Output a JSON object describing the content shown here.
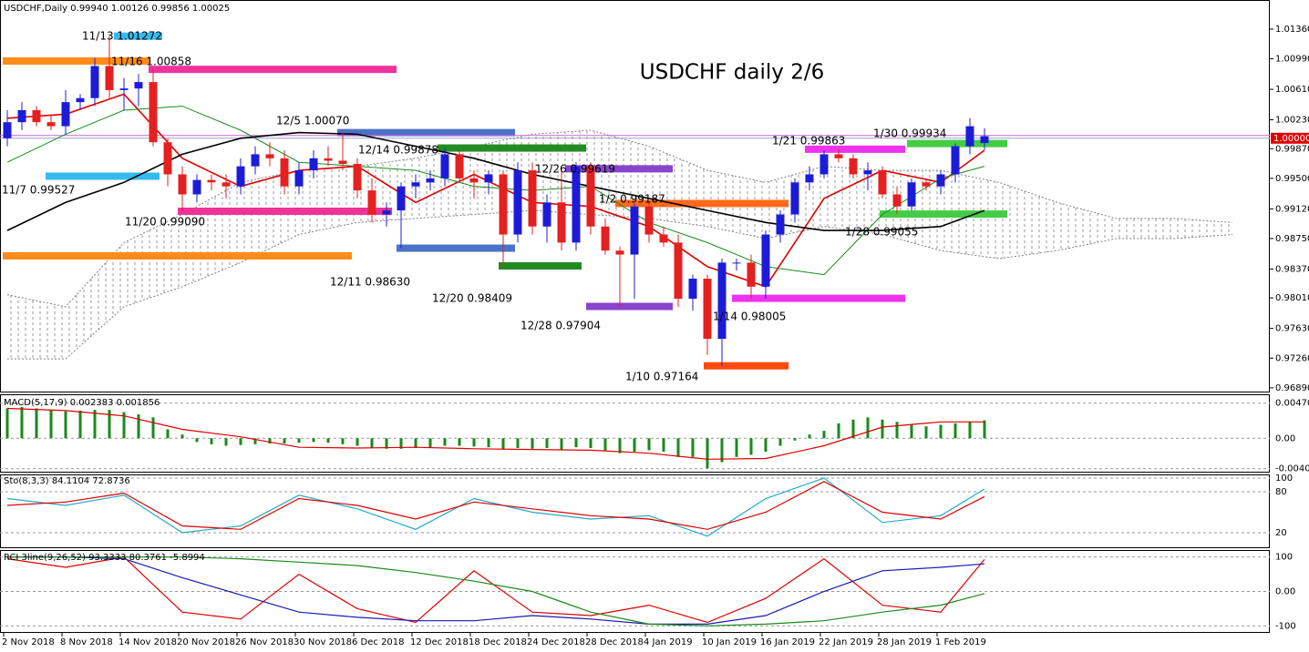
{
  "chart_data": {
    "type": "candlestick",
    "header": "USDCHF,Daily  0.99940 1.00126 0.99856 1.00025",
    "title": "USDCHF daily 2/6",
    "up_color": "#1c1cd8",
    "down_color": "#e42020",
    "ylim": [
      0.96843,
      1.017
    ],
    "yticks": [
      {
        "value": 1.0136,
        "label": "1.01360"
      },
      {
        "value": 1.0099,
        "label": "1.00990"
      },
      {
        "value": 1.0061,
        "label": "1.00610"
      },
      {
        "value": 1.0023,
        "label": "1.00230"
      },
      {
        "value": 0.9987,
        "label": "0.99870"
      },
      {
        "value": 0.995,
        "label": "0.99500"
      },
      {
        "value": 0.9912,
        "label": "0.99120"
      },
      {
        "value": 0.9875,
        "label": "0.98750"
      },
      {
        "value": 0.9837,
        "label": "0.98370"
      },
      {
        "value": 0.9801,
        "label": "0.98010"
      },
      {
        "value": 0.9763,
        "label": "0.97630"
      },
      {
        "value": 0.9726,
        "label": "0.97260"
      },
      {
        "value": 0.9689,
        "label": "0.96890"
      }
    ],
    "current_price": {
      "value": 1.0,
      "label": "1.00000"
    },
    "categories": [
      "2 Nov 2018",
      null,
      null,
      null,
      "8 Nov 2018",
      null,
      null,
      null,
      "14 Nov 2018",
      null,
      null,
      null,
      "20 Nov 2018",
      null,
      null,
      null,
      "26 Nov 2018",
      null,
      null,
      null,
      "30 Nov 2018",
      null,
      null,
      null,
      "6 Dec 2018",
      null,
      null,
      null,
      "12 Dec 2018",
      null,
      null,
      null,
      "18 Dec 2018",
      null,
      null,
      null,
      "24 Dec 2018",
      null,
      null,
      null,
      "28 Dec 2018",
      null,
      null,
      null,
      "4 Jan 2019",
      null,
      null,
      null,
      "10 Jan 2019",
      null,
      null,
      null,
      "16 Jan 2019",
      null,
      null,
      null,
      "22 Jan 2019",
      null,
      null,
      null,
      "28 Jan 2019",
      null,
      null,
      null,
      "1 Feb 2019",
      null,
      null,
      null
    ],
    "ohlc": [
      [
        1.0,
        1.0035,
        0.999,
        1.002
      ],
      [
        1.002,
        1.0045,
        1.001,
        1.0035
      ],
      [
        1.0035,
        1.004,
        1.0015,
        1.002
      ],
      [
        1.002,
        1.003,
        1.001,
        1.0015
      ],
      [
        1.0015,
        1.006,
        1.0005,
        1.0045
      ],
      [
        1.0045,
        1.0055,
        1.0035,
        1.005
      ],
      [
        1.005,
        1.01,
        1.004,
        1.009
      ],
      [
        1.009,
        1.01272,
        1.005,
        1.006
      ],
      [
        1.006,
        1.0075,
        1.0035,
        1.0062
      ],
      [
        1.0062,
        1.008,
        1.004,
        1.007
      ],
      [
        1.007,
        1.00858,
        0.999,
        0.9995
      ],
      [
        0.9995,
        1.0,
        0.994,
        0.9955
      ],
      [
        0.9955,
        0.9965,
        0.9909,
        0.993
      ],
      [
        0.993,
        0.9955,
        0.992,
        0.9948
      ],
      [
        0.9948,
        0.9955,
        0.9935,
        0.9945
      ],
      [
        0.9945,
        0.9955,
        0.9925,
        0.994
      ],
      [
        0.994,
        0.9975,
        0.993,
        0.9965
      ],
      [
        0.9965,
        0.999,
        0.9955,
        0.998
      ],
      [
        0.998,
        0.9995,
        0.9965,
        0.9975
      ],
      [
        0.9975,
        0.9985,
        0.993,
        0.994
      ],
      [
        0.994,
        0.997,
        0.993,
        0.996
      ],
      [
        0.996,
        0.9985,
        0.995,
        0.9975
      ],
      [
        0.9975,
        0.999,
        0.9965,
        0.9972
      ],
      [
        0.9972,
        1.0007,
        0.996,
        0.9968
      ],
      [
        0.9968,
        0.9975,
        0.9925,
        0.9935
      ],
      [
        0.9935,
        0.995,
        0.9895,
        0.9905
      ],
      [
        0.9905,
        0.992,
        0.989,
        0.991
      ],
      [
        0.991,
        0.9945,
        0.9863,
        0.994
      ],
      [
        0.994,
        0.9955,
        0.9925,
        0.9945
      ],
      [
        0.9945,
        0.996,
        0.9935,
        0.995
      ],
      [
        0.995,
        0.99878,
        0.994,
        0.998
      ],
      [
        0.998,
        0.9985,
        0.9945,
        0.995
      ],
      [
        0.995,
        0.996,
        0.9925,
        0.9945
      ],
      [
        0.9945,
        0.996,
        0.993,
        0.9955
      ],
      [
        0.9955,
        0.996,
        0.98409,
        0.988
      ],
      [
        0.988,
        0.997,
        0.987,
        0.996
      ],
      [
        0.996,
        0.997,
        0.988,
        0.989
      ],
      [
        0.989,
        0.993,
        0.987,
        0.992
      ],
      [
        0.992,
        0.99619,
        0.986,
        0.987
      ],
      [
        0.987,
        0.997,
        0.986,
        0.9965
      ],
      [
        0.9965,
        0.997,
        0.988,
        0.989
      ],
      [
        0.989,
        0.99,
        0.9855,
        0.986
      ],
      [
        0.986,
        0.9865,
        0.97904,
        0.9855
      ],
      [
        0.9855,
        0.99187,
        0.98,
        0.9915
      ],
      [
        0.9915,
        0.992,
        0.987,
        0.988
      ],
      [
        0.988,
        0.989,
        0.9865,
        0.987
      ],
      [
        0.987,
        0.988,
        0.979,
        0.98
      ],
      [
        0.98,
        0.983,
        0.9785,
        0.9825
      ],
      [
        0.9825,
        0.983,
        0.973,
        0.975
      ],
      [
        0.975,
        0.985,
        0.97164,
        0.9845
      ],
      [
        0.9845,
        0.985,
        0.9835,
        0.9845
      ],
      [
        0.9845,
        0.9855,
        0.98005,
        0.9815
      ],
      [
        0.9815,
        0.9885,
        0.98,
        0.988
      ],
      [
        0.988,
        0.991,
        0.987,
        0.9905
      ],
      [
        0.9905,
        0.995,
        0.9895,
        0.9945
      ],
      [
        0.9945,
        0.9965,
        0.9935,
        0.9955
      ],
      [
        0.9955,
        0.9985,
        0.995,
        0.998
      ],
      [
        0.998,
        0.99863,
        0.997,
        0.9975
      ],
      [
        0.9975,
        0.998,
        0.995,
        0.9955
      ],
      [
        0.9955,
        0.997,
        0.9935,
        0.996
      ],
      [
        0.996,
        0.9965,
        0.9925,
        0.993
      ],
      [
        0.993,
        0.994,
        0.99055,
        0.9915
      ],
      [
        0.9915,
        0.995,
        0.991,
        0.9945
      ],
      [
        0.9945,
        0.995,
        0.9935,
        0.994
      ],
      [
        0.994,
        0.996,
        0.993,
        0.9955
      ],
      [
        0.9955,
        0.99934,
        0.9945,
        0.999
      ],
      [
        0.999,
        1.0025,
        0.998,
        1.0015
      ],
      [
        0.9994,
        1.00126,
        0.99856,
        1.00025
      ]
    ],
    "lines": [
      {
        "color": "#e00000",
        "x": [
          0,
          4,
          8,
          12,
          16,
          20,
          24,
          28,
          32,
          36,
          40,
          44,
          48,
          52,
          56,
          60,
          64,
          67
        ],
        "values": [
          1.0025,
          1.003,
          1.0055,
          0.9975,
          0.994,
          0.996,
          0.9965,
          0.992,
          0.9955,
          0.992,
          0.9915,
          0.989,
          0.984,
          0.9815,
          0.9925,
          0.996,
          0.9945,
          0.9985
        ]
      },
      {
        "color": "#1a8a1a",
        "x": [
          0,
          4,
          8,
          12,
          16,
          20,
          24,
          28,
          32,
          36,
          40,
          44,
          48,
          52,
          56,
          60,
          64,
          67
        ],
        "values": [
          0.997,
          1.0005,
          1.0035,
          1.004,
          1.001,
          0.997,
          0.9965,
          0.996,
          0.994,
          0.9935,
          0.994,
          0.9895,
          0.987,
          0.984,
          0.983,
          0.9905,
          0.995,
          0.9965
        ]
      },
      {
        "color": "#000000",
        "x": [
          0,
          4,
          8,
          12,
          16,
          20,
          24,
          28,
          32,
          36,
          40,
          44,
          48,
          52,
          56,
          60,
          64,
          67
        ],
        "values": [
          0.9885,
          0.992,
          0.9945,
          0.998,
          1.0,
          1.0007,
          1.0005,
          0.999,
          0.9975,
          0.9955,
          0.994,
          0.9925,
          0.991,
          0.9895,
          0.9885,
          0.9885,
          0.989,
          0.991
        ]
      }
    ],
    "cloud": {
      "color": "#808080",
      "x": [
        0,
        4,
        8,
        12,
        16,
        20,
        24,
        28,
        32,
        36,
        40,
        44,
        48,
        52,
        56,
        60,
        64,
        68,
        72,
        76,
        80,
        84
      ],
      "upper": [
        0.9805,
        0.979,
        0.987,
        0.9905,
        0.9945,
        0.996,
        0.9965,
        0.9975,
        0.999,
        1.0005,
        1.001,
        0.999,
        0.996,
        0.9945,
        0.9965,
        0.996,
        0.996,
        0.9945,
        0.992,
        0.99,
        0.99,
        0.9895
      ],
      "lower": [
        0.9725,
        0.9725,
        0.979,
        0.9815,
        0.9845,
        0.988,
        0.9895,
        0.99,
        0.9905,
        0.991,
        0.9905,
        0.99,
        0.989,
        0.9875,
        0.989,
        0.988,
        0.986,
        0.985,
        0.986,
        0.9875,
        0.9875,
        0.988
      ]
    },
    "annotations": [
      {
        "label": "11/13 1.01272",
        "value": 1.01272,
        "color": "#33bbee"
      },
      {
        "label": "11/16 1.00858",
        "value": 1.00858,
        "color": "#ee3399"
      },
      {
        "label": "11/7 0.99527",
        "value": 0.99527,
        "color": "#33bbee"
      },
      {
        "label": "11/20 0.99090",
        "value": 0.9909,
        "color": "#ee3399"
      },
      {
        "label": "12/5 1.00070",
        "value": 1.0007,
        "color": "#4a72c8"
      },
      {
        "label": "12/14 0.99878",
        "value": 0.99878,
        "color": "#228b22"
      },
      {
        "label": "12/11 0.98630",
        "value": 0.9863,
        "color": "#4a72c8"
      },
      {
        "label": "12/20 0.98409",
        "value": 0.98409,
        "color": "#228b22"
      },
      {
        "label": "12/26 0.99619",
        "value": 0.99619,
        "color": "#8844cc"
      },
      {
        "label": "1/2 0.99187",
        "value": 0.99187,
        "color": "#ff6a1a"
      },
      {
        "label": "12/28 0.97904",
        "value": 0.97904,
        "color": "#8844cc"
      },
      {
        "label": "1/10 0.97164",
        "value": 0.97164,
        "color": "#ff4a0a"
      },
      {
        "label": "1/14 0.98005",
        "value": 0.98005,
        "color": "#ee33ee"
      },
      {
        "label": "1/21 0.99863",
        "value": 0.99863,
        "color": "#ee33ee"
      },
      {
        "label": "1/30 0.99934",
        "value": 0.99934,
        "color": "#44cc44"
      },
      {
        "label": "1/28 0.99055",
        "value": 0.99055,
        "color": "#44cc44"
      }
    ],
    "panels": [
      {
        "header": "MACD(5,17,9) 0.002383 0.001856",
        "ylim": [
          -0.00447,
          0.00552
        ],
        "yticks": [
          0.004701,
          {
            "value": 0,
            "label": "0.00"
          },
          -0.004069
        ],
        "histogram": {
          "color": "#1a8a1a",
          "values": [
            0.004,
            0.0042,
            0.004,
            0.0038,
            0.0036,
            0.0037,
            0.0038,
            0.0038,
            0.0035,
            0.0032,
            0.0028,
            0.0012,
            0.0005,
            -0.0005,
            -0.0008,
            -0.001,
            -0.0009,
            -0.0008,
            -0.0007,
            -0.0007,
            -0.0006,
            -0.0005,
            -0.0006,
            -0.0008,
            -0.001,
            -0.0013,
            -0.0014,
            -0.0014,
            -0.0013,
            -0.0012,
            -0.001,
            -0.001,
            -0.0011,
            -0.0012,
            -0.0015,
            -0.0013,
            -0.0014,
            -0.0013,
            -0.0015,
            -0.0012,
            -0.0013,
            -0.0016,
            -0.002,
            -0.0018,
            -0.0016,
            -0.0018,
            -0.0025,
            -0.0025,
            -0.004,
            -0.0032,
            -0.0025,
            -0.0022,
            -0.0018,
            -0.001,
            -0.0003,
            0.0005,
            0.001,
            0.002,
            0.0025,
            0.0028,
            0.0025,
            0.0022,
            0.0018,
            0.0016,
            0.0018,
            0.002,
            0.0022,
            0.0024
          ]
        },
        "lines": [
          {
            "color": "#e00000",
            "x": [
              0,
              4,
              8,
              12,
              16,
              20,
              24,
              28,
              32,
              36,
              40,
              44,
              48,
              52,
              56,
              60,
              64,
              67
            ],
            "values": [
              0.004,
              0.0037,
              0.003,
              0.0012,
              0.0002,
              -0.0012,
              -0.0013,
              -0.0012,
              -0.0014,
              -0.0015,
              -0.0016,
              -0.002,
              -0.0028,
              -0.0027,
              -0.001,
              0.0015,
              0.0022,
              0.0022
            ]
          }
        ]
      },
      {
        "header": "Sto(8,3,3) 84.1104 72.8736",
        "ylim": [
          0,
          104
        ],
        "yticks": [
          100,
          80,
          20
        ],
        "lines": [
          {
            "color": "#22aacc",
            "x": [
              0,
              4,
              8,
              12,
              16,
              20,
              24,
              28,
              32,
              36,
              40,
              44,
              48,
              52,
              56,
              60,
              64,
              67
            ],
            "values": [
              70,
              60,
              75,
              20,
              30,
              75,
              55,
              25,
              70,
              50,
              40,
              45,
              15,
              70,
              100,
              35,
              45,
              84
            ]
          },
          {
            "color": "#e00000",
            "x": [
              0,
              4,
              8,
              12,
              16,
              20,
              24,
              28,
              32,
              36,
              40,
              44,
              48,
              52,
              56,
              60,
              64,
              67
            ],
            "values": [
              60,
              65,
              78,
              30,
              25,
              70,
              60,
              40,
              65,
              55,
              45,
              40,
              25,
              50,
              95,
              50,
              40,
              73
            ]
          }
        ]
      },
      {
        "header": "RCI 3line(9,26,52) 93.3333 80.3761 -5.8994",
        "ylim": [
          -115,
          115
        ],
        "yticks": [
          100,
          {
            "value": 0,
            "label": "0.00"
          },
          -100
        ],
        "lines": [
          {
            "color": "#e00000",
            "x": [
              0,
              4,
              8,
              12,
              16,
              20,
              24,
              28,
              32,
              36,
              40,
              44,
              48,
              52,
              56,
              60,
              64,
              67
            ],
            "values": [
              95,
              70,
              100,
              -60,
              -80,
              50,
              -50,
              -90,
              60,
              -60,
              -70,
              -40,
              -90,
              -20,
              95,
              -40,
              -60,
              93
            ]
          },
          {
            "color": "#1a1ab0",
            "x": [
              0,
              4,
              8,
              12,
              16,
              20,
              24,
              28,
              32,
              36,
              40,
              44,
              48,
              52,
              56,
              60,
              64,
              67
            ],
            "values": [
              100,
              100,
              95,
              40,
              -10,
              -60,
              -75,
              -85,
              -85,
              -70,
              -80,
              -95,
              -95,
              -70,
              0,
              60,
              70,
              80
            ]
          },
          {
            "color": "#1a8a1a",
            "x": [
              0,
              4,
              8,
              12,
              16,
              20,
              24,
              28,
              32,
              36,
              40,
              44,
              48,
              52,
              56,
              60,
              64,
              67
            ],
            "values": [
              100,
              100,
              100,
              100,
              95,
              85,
              75,
              55,
              30,
              0,
              -60,
              -95,
              -100,
              -95,
              -85,
              -60,
              -40,
              -6
            ]
          }
        ]
      }
    ]
  }
}
